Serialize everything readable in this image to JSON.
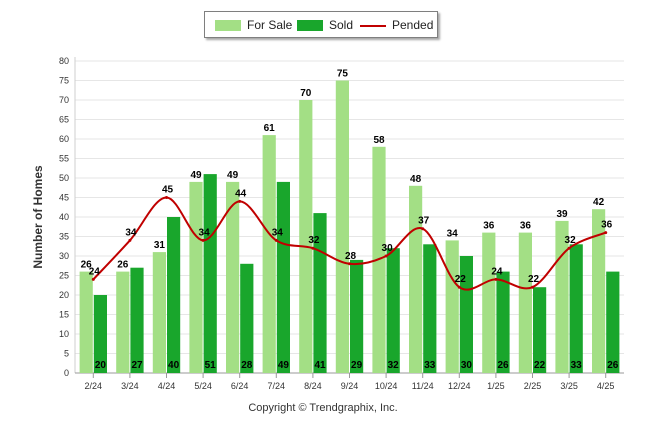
{
  "chart_data": {
    "type": "bar",
    "ylabel": "Number of Homes",
    "xlabel": "",
    "ylim": [
      0,
      80
    ],
    "yticks": [
      0,
      5,
      10,
      15,
      20,
      25,
      30,
      35,
      40,
      45,
      50,
      55,
      60,
      65,
      70,
      75,
      80
    ],
    "grid": true,
    "legend_position": "top-center",
    "categories": [
      "2/24",
      "3/24",
      "4/24",
      "5/24",
      "6/24",
      "7/24",
      "8/24",
      "9/24",
      "10/24",
      "11/24",
      "12/24",
      "1/25",
      "2/25",
      "3/25",
      "4/25"
    ],
    "series": [
      {
        "name": "For Sale",
        "kind": "bar",
        "color": "#a3df85",
        "values": [
          26,
          26,
          31,
          49,
          49,
          61,
          70,
          75,
          58,
          48,
          34,
          36,
          36,
          39,
          42
        ]
      },
      {
        "name": "Sold",
        "kind": "bar",
        "color": "#19a62c",
        "values": [
          20,
          27,
          40,
          51,
          28,
          49,
          41,
          29,
          32,
          33,
          30,
          26,
          22,
          33,
          26
        ]
      },
      {
        "name": "Pended",
        "kind": "line",
        "color": "#c00000",
        "values": [
          24,
          34,
          45,
          34,
          44,
          34,
          32,
          28,
          30,
          37,
          22,
          24,
          22,
          32,
          36
        ]
      }
    ]
  },
  "footer": "Copyright © Trendgraphix, Inc."
}
